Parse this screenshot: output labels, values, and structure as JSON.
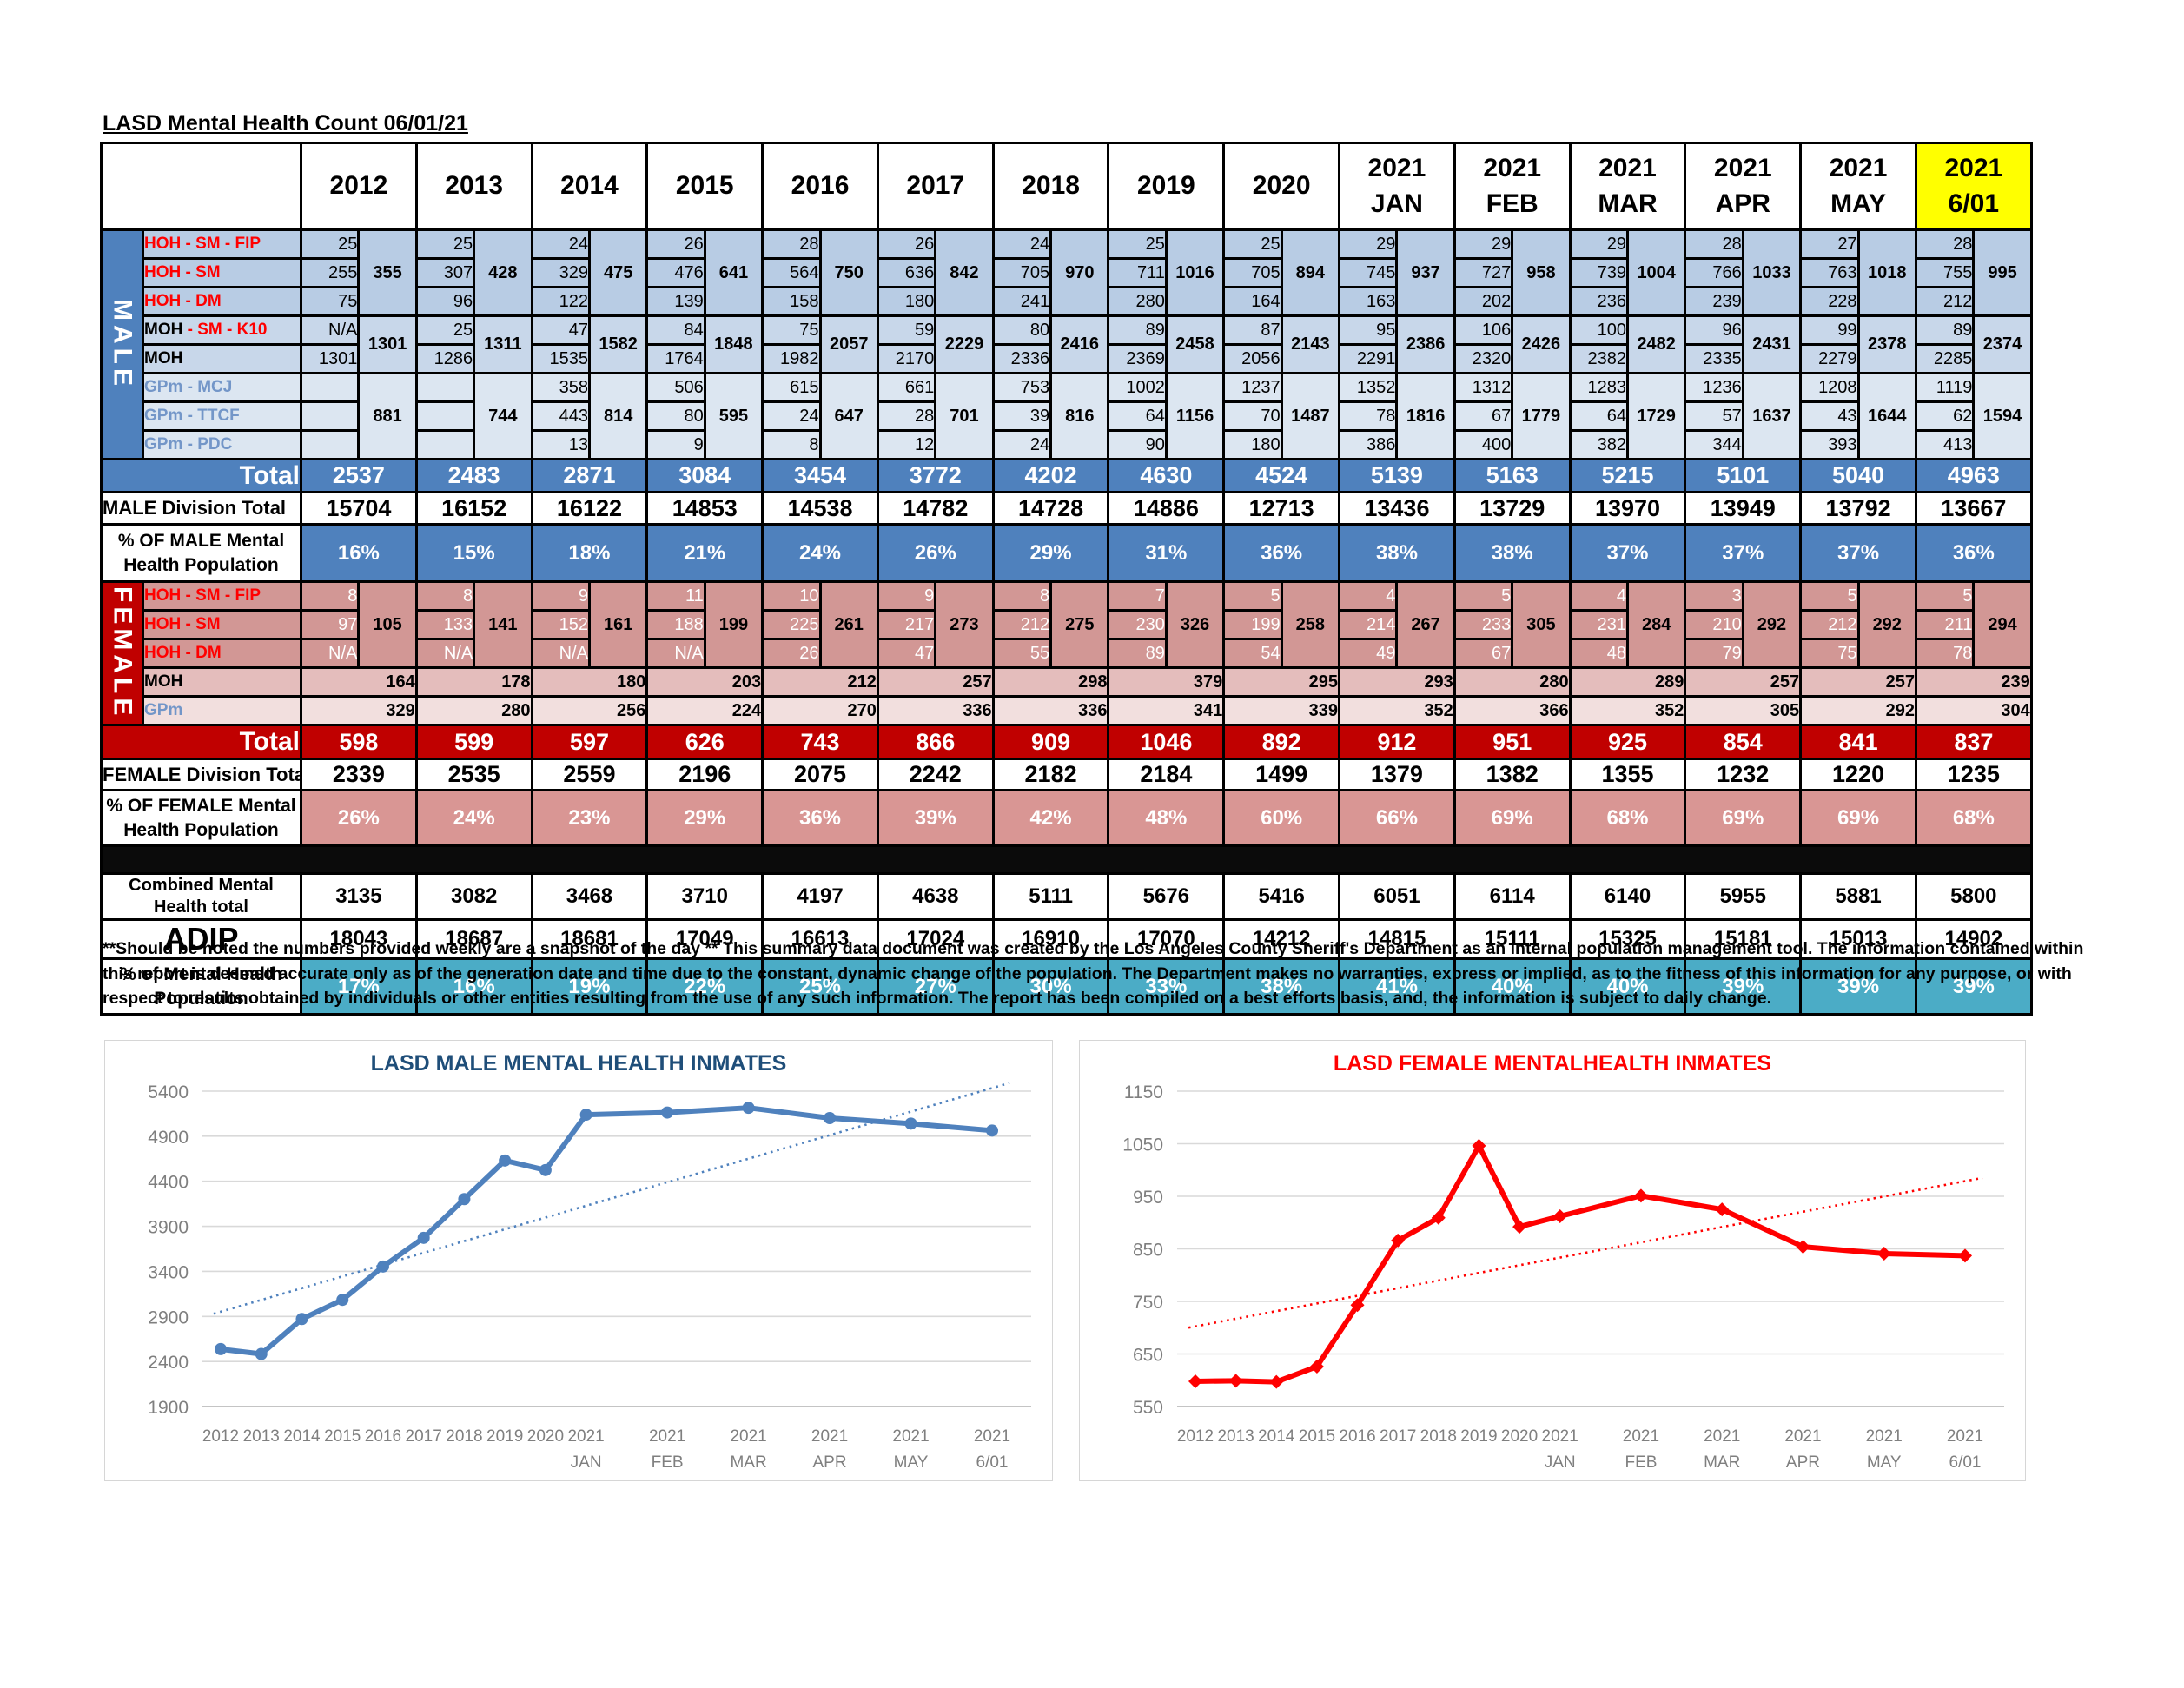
{
  "title": "LASD Mental Health Count 06/01/21",
  "table": {
    "columns": [
      {
        "l1": "2012",
        "l2": ""
      },
      {
        "l1": "2013",
        "l2": ""
      },
      {
        "l1": "2014",
        "l2": ""
      },
      {
        "l1": "2015",
        "l2": ""
      },
      {
        "l1": "2016",
        "l2": ""
      },
      {
        "l1": "2017",
        "l2": ""
      },
      {
        "l1": "2018",
        "l2": ""
      },
      {
        "l1": "2019",
        "l2": ""
      },
      {
        "l1": "2020",
        "l2": ""
      },
      {
        "l1": "2021",
        "l2": "JAN"
      },
      {
        "l1": "2021",
        "l2": "FEB"
      },
      {
        "l1": "2021",
        "l2": "MAR"
      },
      {
        "l1": "2021",
        "l2": "APR"
      },
      {
        "l1": "2021",
        "l2": "MAY"
      },
      {
        "l1": "2021",
        "l2": "6/01",
        "highlight": true
      }
    ],
    "male": {
      "sidebar": "MALE",
      "fip": {
        "label": "HOH - SM - FIP",
        "values": [
          "25",
          "25",
          "24",
          "26",
          "28",
          "26",
          "24",
          "25",
          "25",
          "29",
          "29",
          "29",
          "28",
          "27",
          "28"
        ]
      },
      "sm": {
        "label": "HOH - SM",
        "values": [
          "255",
          "307",
          "329",
          "476",
          "564",
          "636",
          "705",
          "711",
          "705",
          "745",
          "727",
          "739",
          "766",
          "763",
          "755"
        ]
      },
      "dm": {
        "label": "HOH - DM",
        "values": [
          "75",
          "96",
          "122",
          "139",
          "158",
          "180",
          "241",
          "280",
          "164",
          "163",
          "202",
          "236",
          "239",
          "228",
          "212"
        ]
      },
      "hoh_combined": [
        "355",
        "428",
        "475",
        "641",
        "750",
        "842",
        "970",
        "1016",
        "894",
        "937",
        "958",
        "1004",
        "1033",
        "1018",
        "995"
      ],
      "k10": {
        "label_black": "MOH",
        "label_red": " - SM - K10",
        "values": [
          "N/A",
          "25",
          "47",
          "84",
          "75",
          "59",
          "80",
          "89",
          "87",
          "95",
          "106",
          "100",
          "96",
          "99",
          "89"
        ]
      },
      "moh": {
        "label": "MOH",
        "values": [
          "1301",
          "1286",
          "1535",
          "1764",
          "1982",
          "2170",
          "2336",
          "2369",
          "2056",
          "2291",
          "2320",
          "2382",
          "2335",
          "2279",
          "2285"
        ]
      },
      "moh_combined": [
        "1301",
        "1311",
        "1582",
        "1848",
        "2057",
        "2229",
        "2416",
        "2458",
        "2143",
        "2386",
        "2426",
        "2482",
        "2431",
        "2378",
        "2374"
      ],
      "mcj": {
        "label": "GPm - MCJ",
        "values": [
          "",
          "",
          "358",
          "506",
          "615",
          "661",
          "753",
          "1002",
          "1237",
          "1352",
          "1312",
          "1283",
          "1236",
          "1208",
          "1119"
        ]
      },
      "ttcf": {
        "label": "GPm - TTCF",
        "values": [
          "",
          "",
          "443",
          "80",
          "24",
          "28",
          "39",
          "64",
          "70",
          "78",
          "67",
          "64",
          "57",
          "43",
          "62"
        ]
      },
      "pdc": {
        "label": "GPm - PDC",
        "values": [
          "",
          "",
          "13",
          "9",
          "8",
          "12",
          "24",
          "90",
          "180",
          "386",
          "400",
          "382",
          "344",
          "393",
          "413"
        ]
      },
      "gpm_combined": [
        "881",
        "744",
        "814",
        "595",
        "647",
        "701",
        "816",
        "1156",
        "1487",
        "1816",
        "1779",
        "1729",
        "1637",
        "1644",
        "1594"
      ],
      "total_label": "Total",
      "total": [
        "2537",
        "2483",
        "2871",
        "3084",
        "3454",
        "3772",
        "4202",
        "4630",
        "4524",
        "5139",
        "5163",
        "5215",
        "5101",
        "5040",
        "4963"
      ],
      "division_label": "MALE Division Total",
      "division": [
        "15704",
        "16152",
        "16122",
        "14853",
        "14538",
        "14782",
        "14728",
        "14886",
        "12713",
        "13436",
        "13729",
        "13970",
        "13949",
        "13792",
        "13667"
      ],
      "pct_label": "% OF MALE Mental Health Population",
      "pct": [
        "16%",
        "15%",
        "18%",
        "21%",
        "24%",
        "26%",
        "29%",
        "31%",
        "36%",
        "38%",
        "38%",
        "37%",
        "37%",
        "37%",
        "36%"
      ]
    },
    "female": {
      "sidebar": "FEMALE",
      "fip": {
        "label": "HOH - SM - FIP",
        "values": [
          "8",
          "8",
          "9",
          "11",
          "10",
          "9",
          "8",
          "7",
          "5",
          "4",
          "5",
          "4",
          "3",
          "5",
          "5"
        ]
      },
      "sm": {
        "label": "HOH - SM",
        "values": [
          "97",
          "133",
          "152",
          "188",
          "225",
          "217",
          "212",
          "230",
          "199",
          "214",
          "233",
          "231",
          "210",
          "212",
          "211"
        ]
      },
      "dm": {
        "label": "HOH - DM",
        "values": [
          "N/A",
          "N/A",
          "N/A",
          "N/A",
          "26",
          "47",
          "55",
          "89",
          "54",
          "49",
          "67",
          "48",
          "79",
          "75",
          "78"
        ]
      },
      "hoh_combined": [
        "105",
        "141",
        "161",
        "199",
        "261",
        "273",
        "275",
        "326",
        "258",
        "267",
        "305",
        "284",
        "292",
        "292",
        "294"
      ],
      "moh": {
        "label": "MOH",
        "values": [
          "164",
          "178",
          "180",
          "203",
          "212",
          "257",
          "298",
          "379",
          "295",
          "293",
          "280",
          "289",
          "257",
          "257",
          "239"
        ]
      },
      "gpm": {
        "label": "GPm",
        "values": [
          "329",
          "280",
          "256",
          "224",
          "270",
          "336",
          "336",
          "341",
          "339",
          "352",
          "366",
          "352",
          "305",
          "292",
          "304"
        ]
      },
      "total_label": "Total",
      "total": [
        "598",
        "599",
        "597",
        "626",
        "743",
        "866",
        "909",
        "1046",
        "892",
        "912",
        "951",
        "925",
        "854",
        "841",
        "837"
      ],
      "division_label": "FEMALE Division Total",
      "division": [
        "2339",
        "2535",
        "2559",
        "2196",
        "2075",
        "2242",
        "2182",
        "2184",
        "1499",
        "1379",
        "1382",
        "1355",
        "1232",
        "1220",
        "1235"
      ],
      "pct_label": "% OF FEMALE Mental Health Population",
      "pct": [
        "26%",
        "24%",
        "23%",
        "29%",
        "36%",
        "39%",
        "42%",
        "48%",
        "60%",
        "66%",
        "69%",
        "68%",
        "69%",
        "69%",
        "68%"
      ]
    },
    "bottom": {
      "combined_label": "Combined Mental Health total",
      "combined": [
        "3135",
        "3082",
        "3468",
        "3710",
        "4197",
        "4638",
        "5111",
        "5676",
        "5416",
        "6051",
        "6114",
        "6140",
        "5955",
        "5881",
        "5800"
      ],
      "adip_label": "ADIP",
      "adip": [
        "18043",
        "18687",
        "18681",
        "17049",
        "16613",
        "17024",
        "16910",
        "17070",
        "14212",
        "14815",
        "15111",
        "15325",
        "15181",
        "15013",
        "14902"
      ],
      "pct_label": "% of Mental Health Population",
      "pct": [
        "17%",
        "16%",
        "19%",
        "22%",
        "25%",
        "27%",
        "30%",
        "33%",
        "38%",
        "41%",
        "40%",
        "40%",
        "39%",
        "39%",
        "39%"
      ]
    }
  },
  "disclaimer": "**Should be noted the numbers provided weekly are a snapshot of the day ** This summary data document was created by the Los Angeles County Sheriff's Department as an internal population management tool.  The information contained within this report is deemed accurate only as of the generation date and time due to the constant, dynamic change of the population.  The Department makes no warranties, express or implied, as to the fitness of this information for any purpose, or with respect to results obtained by individuals or other entities resulting from the use of any such information.  The report has been compiled on a best efforts basis, and, the information is subject to daily change.",
  "chart_data": [
    {
      "type": "line",
      "title": "LASD MALE MENTAL HEALTH INMATES",
      "title_color": "#1F4E79",
      "line_color": "#4F81BD",
      "marker": "circle",
      "categories": [
        [
          "2012",
          ""
        ],
        [
          "2013",
          ""
        ],
        [
          "2014",
          ""
        ],
        [
          "2015",
          ""
        ],
        [
          "2016",
          ""
        ],
        [
          "2017",
          ""
        ],
        [
          "2018",
          ""
        ],
        [
          "2019",
          ""
        ],
        [
          "2020",
          ""
        ],
        [
          "2021",
          "JAN"
        ],
        [
          "2021",
          "FEB"
        ],
        [
          "2021",
          "MAR"
        ],
        [
          "2021",
          "APR"
        ],
        [
          "2021",
          "MAY"
        ],
        [
          "2021",
          "6/01"
        ]
      ],
      "values": [
        2537,
        2483,
        2871,
        3084,
        3454,
        3772,
        4202,
        4630,
        4524,
        5139,
        5163,
        5215,
        5101,
        5040,
        4963
      ],
      "yticks": [
        1900,
        2400,
        2900,
        3400,
        3900,
        4400,
        4900,
        5400
      ],
      "ylim": [
        1900,
        5400
      ],
      "xlabel": "",
      "ylabel": "",
      "grid": true,
      "legend": "none",
      "trend": {
        "start": 2930,
        "end": 5490
      }
    },
    {
      "type": "line",
      "title": "LASD FEMALE MENTALHEALTH INMATES",
      "title_color": "#FF0000",
      "line_color": "#FF0000",
      "marker": "diamond",
      "categories": [
        [
          "2012",
          ""
        ],
        [
          "2013",
          ""
        ],
        [
          "2014",
          ""
        ],
        [
          "2015",
          ""
        ],
        [
          "2016",
          ""
        ],
        [
          "2017",
          ""
        ],
        [
          "2018",
          ""
        ],
        [
          "2019",
          ""
        ],
        [
          "2020",
          ""
        ],
        [
          "2021",
          "JAN"
        ],
        [
          "2021",
          "FEB"
        ],
        [
          "2021",
          "MAR"
        ],
        [
          "2021",
          "APR"
        ],
        [
          "2021",
          "MAY"
        ],
        [
          "2021",
          "6/01"
        ]
      ],
      "values": [
        598,
        599,
        597,
        626,
        743,
        866,
        909,
        1046,
        892,
        912,
        951,
        925,
        854,
        841,
        837
      ],
      "yticks": [
        550,
        650,
        750,
        850,
        950,
        1050,
        1150
      ],
      "ylim": [
        550,
        1150
      ],
      "xlabel": "",
      "ylabel": "",
      "grid": true,
      "legend": "none",
      "trend": {
        "start": 700,
        "end": 985
      }
    }
  ]
}
